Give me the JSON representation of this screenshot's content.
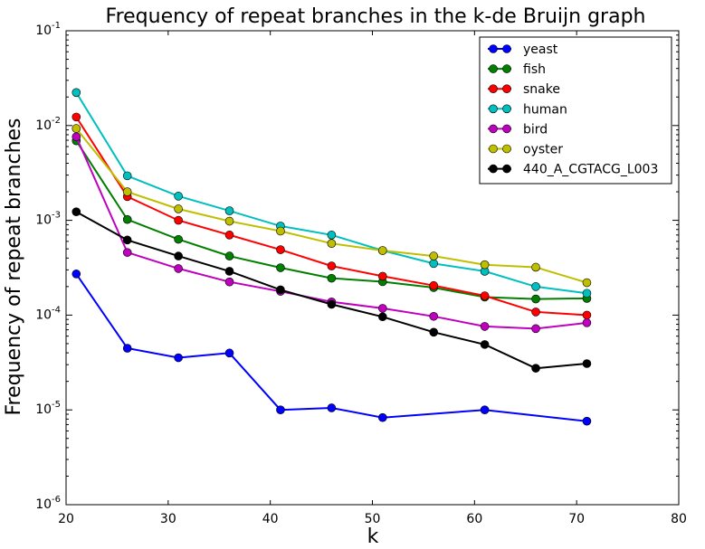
{
  "chart_data": {
    "type": "line",
    "title": "Frequency of repeat branches in the k-de Bruijn graph",
    "xlabel": "k",
    "ylabel": "Frequency of repeat branches",
    "xlim": [
      20,
      80
    ],
    "ylim": [
      1e-06,
      0.1
    ],
    "yscale": "log",
    "grid": false,
    "legend_position": "top-right",
    "x_ticks": [
      20,
      30,
      40,
      50,
      60,
      70,
      80
    ],
    "y_ticks": [
      {
        "base": "10",
        "exp": "-6",
        "value": 1e-06
      },
      {
        "base": "10",
        "exp": "-5",
        "value": 1e-05
      },
      {
        "base": "10",
        "exp": "-4",
        "value": 0.0001
      },
      {
        "base": "10",
        "exp": "-3",
        "value": 0.001
      },
      {
        "base": "10",
        "exp": "-2",
        "value": 0.01
      },
      {
        "base": "10",
        "exp": "-1",
        "value": 0.1
      }
    ],
    "series": [
      {
        "name": "yeast",
        "color": "#0000ff",
        "points": [
          [
            21,
            0.000272
          ],
          [
            26,
            4.47e-05
          ],
          [
            31,
            3.55e-05
          ],
          [
            36,
            3.98e-05
          ],
          [
            41,
            1e-05
          ],
          [
            46,
            1.05e-05
          ],
          [
            51,
            8.3e-06
          ],
          [
            61,
            1e-05
          ],
          [
            71,
            7.6e-06
          ]
        ]
      },
      {
        "name": "fish",
        "color": "#007f00",
        "points": [
          [
            21,
            0.0069
          ],
          [
            26,
            0.00102
          ],
          [
            31,
            0.00063
          ],
          [
            36,
            0.00042
          ],
          [
            41,
            0.000316
          ],
          [
            46,
            0.000245
          ],
          [
            51,
            0.000225
          ],
          [
            56,
            0.000195
          ],
          [
            61,
            0.000155
          ],
          [
            66,
            0.000148
          ],
          [
            71,
            0.00015
          ]
        ]
      },
      {
        "name": "snake",
        "color": "#ff0000",
        "points": [
          [
            21,
            0.0123
          ],
          [
            26,
            0.00178
          ],
          [
            31,
            0.001
          ],
          [
            36,
            0.0007
          ],
          [
            41,
            0.00049
          ],
          [
            46,
            0.00033
          ],
          [
            51,
            0.000257
          ],
          [
            56,
            0.000205
          ],
          [
            61,
            0.00016
          ],
          [
            66,
            0.000108
          ],
          [
            71,
            0.0001
          ]
        ]
      },
      {
        "name": "human",
        "color": "#00bfbf",
        "points": [
          [
            21,
            0.0223
          ],
          [
            26,
            0.00295
          ],
          [
            31,
            0.0018
          ],
          [
            36,
            0.00126
          ],
          [
            41,
            0.00087
          ],
          [
            46,
            0.0007
          ],
          [
            51,
            0.00048
          ],
          [
            56,
            0.00035
          ],
          [
            61,
            0.00029
          ],
          [
            66,
            0.0002
          ],
          [
            71,
            0.00017
          ]
        ]
      },
      {
        "name": "bird",
        "color": "#bf00bf",
        "points": [
          [
            21,
            0.0076
          ],
          [
            26,
            0.000458
          ],
          [
            31,
            0.00031
          ],
          [
            36,
            0.000224
          ],
          [
            41,
            0.000178
          ],
          [
            46,
            0.000138
          ],
          [
            51,
            0.000118
          ],
          [
            56,
            9.7e-05
          ],
          [
            61,
            7.6e-05
          ],
          [
            66,
            7.2e-05
          ],
          [
            71,
            8.3e-05
          ]
        ]
      },
      {
        "name": "oyster",
        "color": "#bfbf00",
        "points": [
          [
            21,
            0.0093
          ],
          [
            26,
            0.002
          ],
          [
            31,
            0.00132
          ],
          [
            36,
            0.00098
          ],
          [
            41,
            0.00077
          ],
          [
            46,
            0.00057
          ],
          [
            51,
            0.00048
          ],
          [
            56,
            0.00042
          ],
          [
            61,
            0.00034
          ],
          [
            66,
            0.00032
          ],
          [
            71,
            0.00022
          ]
        ]
      },
      {
        "name": "440_A_CGTACG_L003",
        "color": "#000000",
        "points": [
          [
            21,
            0.00123
          ],
          [
            26,
            0.00062
          ],
          [
            31,
            0.00042
          ],
          [
            36,
            0.00029
          ],
          [
            41,
            0.000185
          ],
          [
            46,
            0.00013
          ],
          [
            51,
            9.6e-05
          ],
          [
            56,
            6.6e-05
          ],
          [
            61,
            4.9e-05
          ],
          [
            66,
            2.75e-05
          ],
          [
            71,
            3.08e-05
          ]
        ]
      }
    ]
  }
}
